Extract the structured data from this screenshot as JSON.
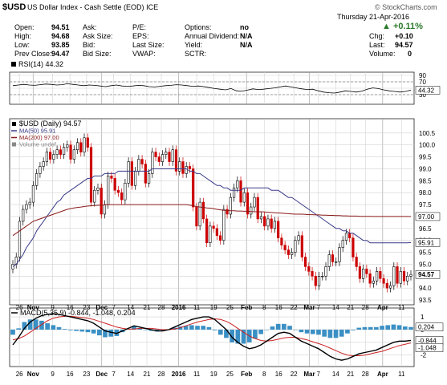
{
  "header": {
    "symbol": "$USD",
    "name": "US Dollar Index - Cash Settle (EOD)",
    "exchange": "ICE",
    "brand": "© StockCharts.com",
    "date": "Thursday  21-Apr-2016",
    "rows": [
      [
        {
          "label": "Open:",
          "value": "94.51"
        },
        {
          "label": "Ask:",
          "value": ""
        },
        {
          "label": "P/E:",
          "value": ""
        },
        {
          "label": "Options:",
          "value": "no"
        }
      ],
      [
        {
          "label": "High:",
          "value": "94.68"
        },
        {
          "label": "Ask Size:",
          "value": ""
        },
        {
          "label": "EPS:",
          "value": ""
        },
        {
          "label": "Annual Dividend:",
          "value": "N/A"
        }
      ],
      [
        {
          "label": "Low:",
          "value": "93.85"
        },
        {
          "label": "Bid:",
          "value": ""
        },
        {
          "label": "Last Size:",
          "value": ""
        },
        {
          "label": "Yield:",
          "value": "N/A"
        }
      ],
      [
        {
          "label": "Prev Close:",
          "value": "94.47"
        },
        {
          "label": "Bid Size:",
          "value": ""
        },
        {
          "label": "VWAP:",
          "value": ""
        },
        {
          "label": "SCTR:",
          "value": ""
        }
      ]
    ],
    "right": [
      {
        "label": "",
        "value": "▲ +0.11%"
      },
      {
        "label": "Chg:",
        "value": "+0.10"
      },
      {
        "label": "Last:",
        "value": "94.57"
      },
      {
        "label": "Volume:",
        "value": "0"
      }
    ]
  },
  "colors": {
    "up": "#2a6a2a",
    "down": "#cc0000",
    "ma50": "#3a3a8a",
    "ma200": "#8b1a1a",
    "hist": "#3a8fc4",
    "macd": "#000000",
    "signal": "#cc2222",
    "grid": "#d2d2d2",
    "axis": "#000000"
  },
  "chart_data": [
    {
      "type": "line",
      "panel": "rsi",
      "legend": "RSI(14) 44.32",
      "ylim": [
        0,
        100
      ],
      "yticks": [
        30,
        50,
        70,
        90
      ],
      "last_label": "44.32",
      "ref_lines": [
        30,
        70
      ],
      "values": [
        58,
        60,
        62,
        60,
        59,
        61,
        63,
        62,
        60,
        61,
        64,
        62,
        60,
        58,
        60,
        59,
        57,
        55,
        58,
        60,
        57,
        56,
        57,
        59,
        58,
        55,
        54,
        56,
        58,
        59,
        61,
        60,
        58,
        56,
        57,
        55,
        52,
        49,
        47,
        45,
        49,
        42,
        41,
        44,
        48,
        46,
        47,
        49,
        51,
        54,
        57,
        54,
        51,
        48,
        46,
        47,
        42,
        38,
        36,
        35,
        38,
        42,
        40,
        38,
        41,
        47,
        51,
        49,
        45,
        42,
        40,
        38,
        40,
        44
      ]
    },
    {
      "type": "candlestick",
      "panel": "price",
      "legend": [
        {
          "text": "$USD (Daily) 94.57",
          "color": "#000000",
          "mark": "square"
        },
        {
          "text": "MA(50) 95.91",
          "color": "#3a3a8a",
          "mark": "line"
        },
        {
          "text": "MA(200) 97.00",
          "color": "#8b1a1a",
          "mark": "line"
        },
        {
          "text": "Volume undef",
          "color": "#888888",
          "mark": "square"
        }
      ],
      "ylim": [
        93.3,
        101.1
      ],
      "yticks": [
        93.5,
        94.0,
        94.5,
        95.0,
        95.5,
        96.0,
        96.5,
        97.0,
        97.5,
        98.0,
        98.5,
        99.0,
        99.5,
        100.0,
        100.5
      ],
      "last_labels": [
        {
          "value": 97.0,
          "text": "97.00"
        },
        {
          "value": 95.91,
          "text": "95.91"
        },
        {
          "value": 94.57,
          "text": "94.57"
        }
      ],
      "close": [
        95.0,
        95.3,
        96.8,
        97.3,
        97.5,
        97.6,
        98.3,
        98.8,
        99.1,
        99.3,
        99.7,
        99.4,
        99.6,
        99.8,
        99.6,
        99.9,
        100.0,
        99.4,
        99.8,
        100.1,
        99.7,
        100.3,
        99.9,
        97.6,
        98.1,
        98.2,
        97.1,
        97.5,
        98.7,
        98.6,
        98.1,
        98.0,
        97.7,
        98.4,
        99.3,
        98.3,
        98.9,
        99.4,
        99.2,
        98.4,
        98.8,
        99.7,
        99.5,
        99.3,
        99.6,
        99.7,
        99.3,
        99.8,
        98.9,
        99.3,
        98.8,
        99.1,
        99.0,
        97.4,
        96.6,
        97.6,
        96.9,
        95.9,
        96.6,
        96.5,
        96.2,
        96.0,
        97.3,
        97.1,
        97.8,
        98.2,
        98.5,
        97.6,
        98.0,
        97.1,
        97.4,
        97.8,
        96.9,
        97.0,
        96.6,
        96.9,
        96.5,
        96.8,
        96.1,
        95.8,
        95.6,
        95.4,
        95.5,
        96.0,
        96.2,
        95.3,
        94.9,
        94.7,
        94.5,
        94.1,
        94.5,
        94.5,
        94.9,
        95.4,
        95.1,
        95.1,
        95.7,
        96.0,
        96.3,
        96.1,
        95.3,
        94.9,
        94.4,
        94.8,
        94.6,
        94.2,
        94.3,
        94.7,
        94.4,
        94.2,
        94.0,
        94.1,
        94.9,
        94.2,
        94.7,
        94.3,
        94.5,
        94.57
      ],
      "ma50": [
        94.9,
        95.0,
        95.2,
        95.4,
        95.7,
        95.9,
        96.1,
        96.4,
        96.6,
        96.8,
        97.0,
        97.2,
        97.4,
        97.6,
        97.7,
        97.9,
        98.0,
        98.1,
        98.2,
        98.3,
        98.4,
        98.5,
        98.6,
        98.6,
        98.7,
        98.7,
        98.7,
        98.8,
        98.8,
        98.8,
        98.8,
        98.9,
        98.9,
        98.9,
        98.9,
        98.9,
        98.9,
        98.9,
        98.9,
        98.9,
        98.9,
        99.0,
        99.0,
        99.0,
        99.0,
        99.0,
        99.0,
        99.0,
        99.0,
        99.0,
        99.0,
        99.0,
        98.9,
        98.9,
        98.8,
        98.8,
        98.7,
        98.6,
        98.5,
        98.4,
        98.3,
        98.3,
        98.2,
        98.2,
        98.1,
        98.1,
        98.1,
        98.1,
        98.2,
        98.2,
        98.2,
        98.2,
        98.2,
        98.2,
        98.2,
        98.2,
        98.1,
        98.1,
        98.1,
        98.0,
        97.9,
        97.8,
        97.8,
        97.7,
        97.6,
        97.5,
        97.4,
        97.3,
        97.2,
        97.1,
        97.0,
        96.9,
        96.8,
        96.7,
        96.6,
        96.5,
        96.5,
        96.4,
        96.4,
        96.3,
        96.3,
        96.2,
        96.1,
        96.0,
        96.0,
        95.9,
        95.9,
        95.9,
        95.9,
        95.9,
        95.9,
        95.9,
        95.9,
        95.9,
        95.9,
        95.9,
        95.9,
        95.91
      ],
      "ma200": [
        96.2,
        96.3,
        96.4,
        96.5,
        96.6,
        96.7,
        96.8,
        96.85,
        96.9,
        96.95,
        97.0,
        97.05,
        97.1,
        97.15,
        97.2,
        97.25,
        97.3,
        97.33,
        97.36,
        97.38,
        97.4,
        97.42,
        97.44,
        97.45,
        97.46,
        97.47,
        97.48,
        97.49,
        97.5,
        97.5,
        97.5,
        97.5,
        97.5,
        97.5,
        97.5,
        97.5,
        97.5,
        97.5,
        97.5,
        97.5,
        97.5,
        97.5,
        97.5,
        97.5,
        97.5,
        97.5,
        97.5,
        97.5,
        97.5,
        97.5,
        97.5,
        97.5,
        97.48,
        97.45,
        97.42,
        97.4,
        97.38,
        97.36,
        97.35,
        97.33,
        97.3,
        97.28,
        97.26,
        97.25,
        97.24,
        97.24,
        97.23,
        97.23,
        97.22,
        97.22,
        97.21,
        97.2,
        97.2,
        97.2,
        97.19,
        97.18,
        97.17,
        97.16,
        97.15,
        97.14,
        97.13,
        97.12,
        97.11,
        97.1,
        97.1,
        97.1,
        97.09,
        97.08,
        97.08,
        97.07,
        97.07,
        97.06,
        97.06,
        97.05,
        97.05,
        97.04,
        97.04,
        97.03,
        97.03,
        97.02,
        97.02,
        97.02,
        97.01,
        97.01,
        97.01,
        97.01,
        97.0,
        97.0,
        97.0,
        97.0,
        97.0,
        97.0,
        97.0,
        97.0,
        97.0,
        97.0,
        97.0,
        97.0
      ]
    },
    {
      "type": "line",
      "panel": "macd",
      "legend": [
        {
          "text": "MACD(5,35,9) -0.844, -1.048, 0.204",
          "color": "#000000",
          "mark": "line"
        }
      ],
      "ylim": [
        -2.9,
        1.7
      ],
      "yticks": [
        -2,
        -1,
        0,
        1
      ],
      "last_labels": [
        {
          "value": 0.204,
          "text": "0.204"
        },
        {
          "value": -0.844,
          "text": "-0.844"
        },
        {
          "value": -1.048,
          "text": "-1.048"
        }
      ],
      "macd": [
        -1.2,
        -0.6,
        0.1,
        0.6,
        0.9,
        1.1,
        1.2,
        1.25,
        1.2,
        1.1,
        1.0,
        0.9,
        0.8,
        0.7,
        0.5,
        0.2,
        -0.1,
        -0.2,
        -0.3,
        -0.1,
        0.1,
        0.3,
        0.2,
        0.1,
        0.0,
        -0.1,
        -0.1,
        0.0,
        0.2,
        0.4,
        0.6,
        0.8,
        0.9,
        1.0,
        1.0,
        0.8,
        0.4,
        0.0,
        -0.6,
        -1.0,
        -1.3,
        -1.5,
        -1.4,
        -1.2,
        -0.9,
        -0.6,
        -0.3,
        -0.2,
        -0.3,
        -0.6,
        -0.9,
        -1.1,
        -1.3,
        -1.5,
        -1.8,
        -2.1,
        -2.3,
        -2.4,
        -2.3,
        -2.1,
        -1.9,
        -1.8,
        -1.7,
        -1.6,
        -1.4,
        -1.2,
        -1.0,
        -0.9,
        -0.9,
        -0.844
      ],
      "signal": [
        -0.8,
        -0.7,
        -0.5,
        -0.2,
        0.1,
        0.4,
        0.7,
        0.9,
        1.0,
        1.05,
        1.05,
        1.0,
        0.95,
        0.9,
        0.8,
        0.65,
        0.5,
        0.35,
        0.2,
        0.1,
        0.05,
        0.05,
        0.1,
        0.1,
        0.1,
        0.05,
        0.0,
        0.0,
        0.05,
        0.15,
        0.3,
        0.45,
        0.6,
        0.7,
        0.8,
        0.85,
        0.8,
        0.65,
        0.4,
        0.1,
        -0.2,
        -0.5,
        -0.7,
        -0.85,
        -0.9,
        -0.85,
        -0.75,
        -0.65,
        -0.6,
        -0.6,
        -0.7,
        -0.8,
        -0.95,
        -1.1,
        -1.25,
        -1.45,
        -1.65,
        -1.85,
        -2.0,
        -2.05,
        -2.05,
        -2.0,
        -1.9,
        -1.8,
        -1.7,
        -1.55,
        -1.4,
        -1.25,
        -1.15,
        -1.048
      ],
      "histogram": [
        -0.4,
        0.1,
        0.6,
        0.8,
        0.8,
        0.7,
        0.5,
        0.35,
        0.2,
        0.05,
        -0.05,
        -0.1,
        -0.15,
        -0.2,
        -0.3,
        -0.45,
        -0.6,
        -0.55,
        -0.5,
        -0.2,
        0.05,
        0.25,
        0.1,
        0.0,
        -0.1,
        -0.15,
        -0.1,
        0.0,
        0.15,
        0.25,
        0.3,
        0.35,
        0.3,
        0.3,
        0.2,
        -0.05,
        -0.4,
        -0.65,
        -1.0,
        -1.1,
        -1.1,
        -1.0,
        -0.7,
        -0.35,
        0.0,
        0.25,
        0.45,
        0.45,
        0.3,
        0.0,
        -0.2,
        -0.3,
        -0.35,
        -0.4,
        -0.55,
        -0.65,
        -0.65,
        -0.55,
        -0.3,
        -0.05,
        0.15,
        0.2,
        0.2,
        0.2,
        0.3,
        0.35,
        0.4,
        0.35,
        0.25,
        0.204
      ]
    }
  ],
  "x_axis": {
    "labels": [
      {
        "t": 0.027,
        "text": "26",
        "bold": false
      },
      {
        "t": 0.065,
        "text": "Nov",
        "bold": true
      },
      {
        "t": 0.119,
        "text": "9",
        "bold": false
      },
      {
        "t": 0.167,
        "text": "16",
        "bold": false
      },
      {
        "t": 0.213,
        "text": "23",
        "bold": false
      },
      {
        "t": 0.255,
        "text": "Dec",
        "bold": true
      },
      {
        "t": 0.288,
        "text": "7",
        "bold": false
      },
      {
        "t": 0.335,
        "text": "14",
        "bold": false
      },
      {
        "t": 0.38,
        "text": "21",
        "bold": false
      },
      {
        "t": 0.42,
        "text": "28",
        "bold": false
      },
      {
        "t": 0.468,
        "text": "2016",
        "bold": true
      },
      {
        "t": 0.518,
        "text": "11",
        "bold": false
      },
      {
        "t": 0.565,
        "text": "19",
        "bold": false
      },
      {
        "t": 0.61,
        "text": "25",
        "bold": false
      },
      {
        "t": 0.656,
        "text": "Feb",
        "bold": true
      },
      {
        "t": 0.705,
        "text": "8",
        "bold": false
      },
      {
        "t": 0.745,
        "text": "16",
        "bold": false
      },
      {
        "t": 0.787,
        "text": "22",
        "bold": false
      },
      {
        "t": 0.83,
        "text": "Mar",
        "bold": true
      },
      {
        "t": 0.855,
        "text": "7",
        "bold": false
      },
      {
        "t": 0.903,
        "text": "14",
        "bold": false
      },
      {
        "t": 0.944,
        "text": "21",
        "bold": false
      },
      {
        "t": 0.985,
        "text": "28",
        "bold": false
      },
      {
        "t": 1.033,
        "text": "Apr",
        "bold": true
      },
      {
        "t": 1.085,
        "text": "11",
        "bold": false
      },
      {
        "t": 1.13,
        "text": "18",
        "bold": false
      }
    ]
  }
}
